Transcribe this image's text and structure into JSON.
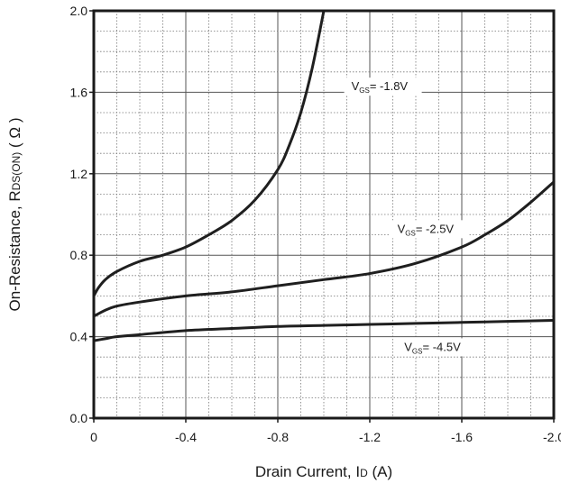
{
  "chart_data": {
    "type": "line",
    "xlabel": {
      "main": "Drain Current, I",
      "sub": "D",
      "unit": " (A)"
    },
    "ylabel": {
      "main": "On-Resistance, R",
      "sub": "DS(ON)",
      "unit": " ( Ω )"
    },
    "xlim": [
      0,
      -2.0
    ],
    "ylim": [
      0,
      2.0
    ],
    "x_ticks": [
      0,
      -0.4,
      -0.8,
      -1.2,
      -1.6,
      -2.0
    ],
    "x_tick_labels": [
      "0",
      "-0.4",
      "-0.8",
      "-1.2",
      "-1.6",
      "-2.0"
    ],
    "y_ticks": [
      0,
      0.4,
      0.8,
      1.2,
      1.6,
      2.0
    ],
    "y_tick_labels": [
      "0.0",
      "0.4",
      "0.8",
      "1.2",
      "1.6",
      "2.0"
    ],
    "grid": true,
    "series": [
      {
        "name": "V_GS = -1.8V",
        "label": {
          "pre": "V",
          "sub": "GS",
          "post": "= -1.8V"
        },
        "x": [
          0,
          -0.02,
          -0.05,
          -0.1,
          -0.2,
          -0.3,
          -0.4,
          -0.5,
          -0.6,
          -0.7,
          -0.8,
          -0.85,
          -0.9,
          -0.95,
          -1.0
        ],
        "y": [
          0.6,
          0.64,
          0.68,
          0.72,
          0.77,
          0.8,
          0.84,
          0.9,
          0.97,
          1.07,
          1.22,
          1.34,
          1.5,
          1.72,
          2.0
        ]
      },
      {
        "name": "V_GS = -2.5V",
        "label": {
          "pre": "V",
          "sub": "GS",
          "post": "= -2.5V"
        },
        "x": [
          0,
          -0.05,
          -0.1,
          -0.2,
          -0.4,
          -0.6,
          -0.8,
          -1.0,
          -1.2,
          -1.4,
          -1.6,
          -1.7,
          -1.8,
          -1.9,
          -2.0
        ],
        "y": [
          0.5,
          0.53,
          0.55,
          0.57,
          0.6,
          0.62,
          0.65,
          0.68,
          0.71,
          0.76,
          0.84,
          0.9,
          0.97,
          1.06,
          1.16
        ]
      },
      {
        "name": "V_GS = -4.5V",
        "label": {
          "pre": "V",
          "sub": "GS",
          "post": "= -4.5V"
        },
        "x": [
          0,
          -0.05,
          -0.1,
          -0.2,
          -0.4,
          -0.6,
          -0.8,
          -1.0,
          -1.2,
          -1.4,
          -1.6,
          -1.8,
          -2.0
        ],
        "y": [
          0.38,
          0.39,
          0.4,
          0.41,
          0.43,
          0.44,
          0.45,
          0.455,
          0.46,
          0.465,
          0.47,
          0.475,
          0.48
        ]
      }
    ],
    "annotation_anchors": [
      {
        "series": 0,
        "x": -1.12,
        "y": 1.61
      },
      {
        "series": 1,
        "x": -1.32,
        "y": 0.91
      },
      {
        "series": 2,
        "x": -1.35,
        "y": 0.33
      }
    ]
  }
}
